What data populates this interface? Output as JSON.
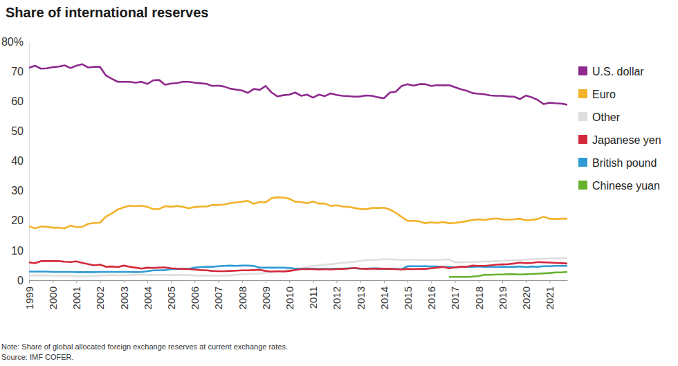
{
  "chart_data": {
    "type": "line",
    "title": "Share of international reserves",
    "note": "Note: Share of global allocated foreign exchange reserves at current exchange rates.",
    "source": "Source: IMF COFER.",
    "legend": "right",
    "grid": false,
    "xlim": [
      1999,
      2021.75
    ],
    "xticks": [
      1999,
      2000,
      2001,
      2002,
      2003,
      2004,
      2005,
      2006,
      2007,
      2008,
      2009,
      2010,
      2011,
      2012,
      2013,
      2014,
      2015,
      2016,
      2017,
      2018,
      2019,
      2020,
      2021
    ],
    "ylim": [
      0,
      80
    ],
    "yticks": [
      0,
      10,
      20,
      30,
      40,
      50,
      60,
      70,
      {
        "value": 80,
        "label": "80%"
      }
    ],
    "x": [
      1999,
      1999.25,
      1999.5,
      1999.75,
      2000,
      2000.25,
      2000.5,
      2000.75,
      2001,
      2001.25,
      2001.5,
      2001.75,
      2002,
      2002.25,
      2002.5,
      2002.75,
      2003,
      2003.25,
      2003.5,
      2003.75,
      2004,
      2004.25,
      2004.5,
      2004.75,
      2005,
      2005.25,
      2005.5,
      2005.75,
      2006,
      2006.25,
      2006.5,
      2006.75,
      2007,
      2007.25,
      2007.5,
      2007.75,
      2008,
      2008.25,
      2008.5,
      2008.75,
      2009,
      2009.25,
      2009.5,
      2009.75,
      2010,
      2010.25,
      2010.5,
      2010.75,
      2011,
      2011.25,
      2011.5,
      2011.75,
      2012,
      2012.25,
      2012.5,
      2012.75,
      2013,
      2013.25,
      2013.5,
      2013.75,
      2014,
      2014.25,
      2014.5,
      2014.75,
      2015,
      2015.25,
      2015.5,
      2015.75,
      2016,
      2016.25,
      2016.5,
      2016.75,
      2017,
      2017.25,
      2017.5,
      2017.75,
      2018,
      2018.25,
      2018.5,
      2018.75,
      2019,
      2019.25,
      2019.5,
      2019.75,
      2020,
      2020.25,
      2020.5,
      2020.75,
      2021,
      2021.25,
      2021.5,
      2021.75
    ],
    "series": [
      {
        "name": "U.S. dollar",
        "color": "#8e2a8e",
        "values": [
          71.2,
          71.9,
          70.9,
          71.0,
          71.4,
          71.6,
          72.0,
          71.1,
          71.9,
          72.4,
          71.3,
          71.5,
          71.5,
          68.6,
          67.5,
          66.5,
          66.5,
          66.5,
          66.2,
          66.5,
          65.8,
          67.0,
          67.1,
          65.5,
          65.9,
          66.1,
          66.5,
          66.5,
          66.2,
          66.0,
          65.8,
          65.1,
          65.2,
          64.9,
          64.2,
          63.9,
          63.6,
          62.8,
          64.1,
          63.8,
          65.1,
          62.9,
          61.6,
          62.0,
          62.2,
          62.9,
          61.8,
          62.2,
          61.2,
          62.2,
          61.7,
          62.6,
          62.1,
          61.8,
          61.7,
          61.5,
          61.6,
          61.9,
          61.8,
          61.3,
          61.0,
          62.9,
          63.2,
          65.1,
          65.7,
          65.2,
          65.7,
          65.7,
          65.1,
          65.4,
          65.3,
          65.4,
          64.7,
          64.0,
          63.5,
          62.7,
          62.5,
          62.3,
          61.9,
          61.8,
          61.8,
          61.6,
          61.5,
          60.7,
          61.9,
          61.3,
          60.4,
          59.0,
          59.5,
          59.3,
          59.2,
          58.8
        ]
      },
      {
        "name": "Euro",
        "color": "#f2b229",
        "values": [
          18.1,
          17.4,
          18.0,
          17.9,
          17.6,
          17.6,
          17.4,
          18.3,
          17.8,
          17.9,
          18.9,
          19.2,
          19.3,
          21.3,
          22.4,
          23.7,
          24.4,
          25.0,
          24.8,
          25.0,
          24.6,
          23.8,
          23.9,
          24.8,
          24.6,
          24.9,
          24.6,
          24.1,
          24.5,
          24.7,
          24.7,
          25.2,
          25.2,
          25.4,
          25.8,
          26.1,
          26.3,
          26.6,
          25.6,
          26.2,
          26.1,
          27.5,
          27.8,
          27.7,
          27.3,
          26.3,
          26.2,
          25.8,
          26.4,
          25.7,
          25.7,
          24.9,
          25.1,
          24.7,
          24.6,
          24.2,
          23.9,
          23.8,
          24.2,
          24.2,
          24.3,
          23.7,
          22.6,
          21.2,
          19.9,
          19.9,
          19.7,
          19.1,
          19.4,
          19.2,
          19.5,
          19.1,
          19.2,
          19.5,
          19.8,
          20.2,
          20.4,
          20.2,
          20.5,
          20.7,
          20.4,
          20.3,
          20.4,
          20.6,
          20.1,
          20.2,
          20.5,
          21.3,
          20.6,
          20.5,
          20.6,
          20.6
        ]
      },
      {
        "name": "Other",
        "color": "#dedede",
        "values": [
          1.6,
          1.6,
          1.6,
          1.6,
          1.5,
          1.5,
          1.5,
          1.5,
          1.3,
          1.3,
          1.4,
          1.4,
          1.6,
          1.6,
          1.7,
          1.6,
          1.6,
          1.7,
          1.8,
          1.8,
          1.8,
          1.7,
          1.8,
          1.8,
          1.7,
          1.7,
          1.8,
          1.7,
          1.6,
          1.5,
          1.6,
          1.5,
          1.5,
          1.6,
          1.6,
          1.8,
          2.0,
          2.1,
          2.2,
          2.2,
          2.5,
          2.8,
          3.0,
          3.2,
          3.5,
          3.8,
          4.0,
          4.4,
          4.8,
          5.0,
          5.2,
          5.4,
          5.6,
          5.8,
          6.0,
          6.2,
          6.5,
          6.7,
          6.8,
          6.9,
          7.0,
          7.0,
          6.9,
          6.8,
          6.9,
          6.9,
          6.8,
          6.8,
          6.7,
          6.8,
          6.9,
          7.0,
          6.0,
          6.0,
          6.1,
          6.1,
          6.2,
          6.3,
          6.3,
          6.4,
          6.5,
          6.6,
          6.7,
          6.8,
          6.9,
          7.0,
          7.1,
          7.2,
          7.3,
          7.3,
          7.4,
          7.4
        ]
      },
      {
        "name": "Japanese yen",
        "color": "#d42a3c",
        "values": [
          6.0,
          5.7,
          6.4,
          6.4,
          6.4,
          6.4,
          6.2,
          6.1,
          6.3,
          5.8,
          5.4,
          5.0,
          5.2,
          4.5,
          4.6,
          4.4,
          4.9,
          4.5,
          4.2,
          3.9,
          4.2,
          4.1,
          4.2,
          4.3,
          4.0,
          3.9,
          3.8,
          3.7,
          3.6,
          3.4,
          3.3,
          3.1,
          3.0,
          3.0,
          3.1,
          3.2,
          3.3,
          3.3,
          3.4,
          3.5,
          3.1,
          2.9,
          3.0,
          2.9,
          3.1,
          3.4,
          3.7,
          3.7,
          3.7,
          3.6,
          3.7,
          3.6,
          3.7,
          3.8,
          3.9,
          4.1,
          3.9,
          3.8,
          3.9,
          3.8,
          3.9,
          3.8,
          3.7,
          3.6,
          3.8,
          3.7,
          3.8,
          3.8,
          4.0,
          4.2,
          4.5,
          4.0,
          4.3,
          4.5,
          4.5,
          4.9,
          4.8,
          4.8,
          5.0,
          5.2,
          5.3,
          5.4,
          5.6,
          5.9,
          5.7,
          5.8,
          6.1,
          6.0,
          5.9,
          5.8,
          5.7,
          5.6
        ]
      },
      {
        "name": "British pound",
        "color": "#2f9bd5",
        "values": [
          2.9,
          2.9,
          2.9,
          2.9,
          2.8,
          2.8,
          2.8,
          2.8,
          2.7,
          2.7,
          2.7,
          2.7,
          2.8,
          2.8,
          2.8,
          2.8,
          2.8,
          2.8,
          2.7,
          2.8,
          3.0,
          3.3,
          3.3,
          3.4,
          3.7,
          3.7,
          3.8,
          3.8,
          4.2,
          4.4,
          4.5,
          4.5,
          4.7,
          4.8,
          4.9,
          4.8,
          4.9,
          4.9,
          4.8,
          4.2,
          4.2,
          4.2,
          4.2,
          4.2,
          4.1,
          3.9,
          3.9,
          3.9,
          3.9,
          3.8,
          3.8,
          3.8,
          3.9,
          3.9,
          4.0,
          4.0,
          3.9,
          3.9,
          4.0,
          4.0,
          3.8,
          3.8,
          3.8,
          3.7,
          4.7,
          4.7,
          4.7,
          4.7,
          4.6,
          4.6,
          4.4,
          4.4,
          4.3,
          4.5,
          4.5,
          4.5,
          4.6,
          4.5,
          4.5,
          4.4,
          4.5,
          4.5,
          4.5,
          4.6,
          4.4,
          4.6,
          4.5,
          4.7,
          4.7,
          4.8,
          4.8,
          4.8
        ]
      },
      {
        "name": "Chinese yuan",
        "color": "#66b22e",
        "values": [
          null,
          null,
          null,
          null,
          null,
          null,
          null,
          null,
          null,
          null,
          null,
          null,
          null,
          null,
          null,
          null,
          null,
          null,
          null,
          null,
          null,
          null,
          null,
          null,
          null,
          null,
          null,
          null,
          null,
          null,
          null,
          null,
          null,
          null,
          null,
          null,
          null,
          null,
          null,
          null,
          null,
          null,
          null,
          null,
          null,
          null,
          null,
          null,
          null,
          null,
          null,
          null,
          null,
          null,
          null,
          null,
          null,
          null,
          null,
          null,
          null,
          null,
          null,
          null,
          null,
          null,
          null,
          null,
          null,
          null,
          null,
          1.1,
          1.1,
          1.1,
          1.1,
          1.2,
          1.4,
          1.8,
          1.8,
          1.9,
          1.9,
          2.0,
          2.0,
          1.9,
          2.0,
          2.1,
          2.2,
          2.3,
          2.4,
          2.6,
          2.6,
          2.8
        ]
      }
    ]
  }
}
